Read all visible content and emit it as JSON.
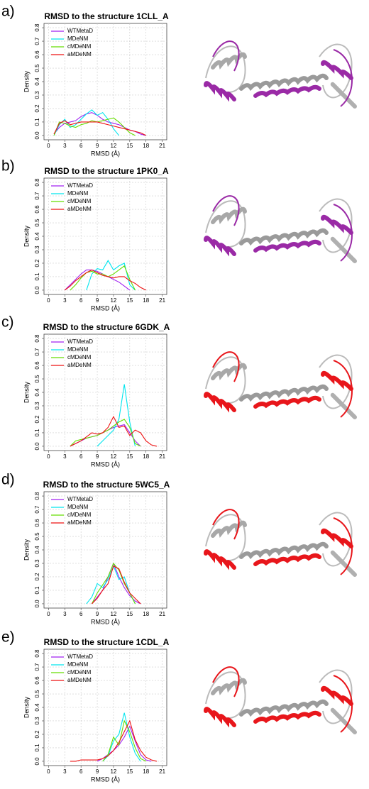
{
  "chart_data": [
    {
      "type": "line",
      "panel_label": "a)",
      "title": "RMSD to the structure 1CLL_A",
      "x_label": "RMSD (Å)",
      "y_label": "Density",
      "x": [
        0,
        1,
        2,
        3,
        4,
        5,
        6,
        7,
        8,
        9,
        10,
        11,
        12,
        13,
        14,
        15,
        16,
        17,
        18,
        19,
        20,
        21
      ],
      "series": [
        {
          "name": "WTMetaD",
          "color": "#a020f0",
          "values": [
            null,
            0.01,
            0.06,
            0.09,
            0.1,
            0.11,
            0.14,
            0.16,
            0.17,
            0.15,
            0.12,
            0.1,
            0.09,
            0.08,
            0.06,
            0.04,
            0.03,
            0.01,
            0.0,
            null,
            null,
            null
          ]
        },
        {
          "name": "MDeNM",
          "color": "#00e5ee",
          "values": [
            null,
            0.0,
            0.08,
            0.12,
            0.06,
            0.08,
            0.12,
            0.16,
            0.19,
            0.15,
            0.17,
            0.12,
            0.05,
            0.0,
            null,
            null,
            null,
            null,
            null,
            null,
            null,
            null
          ]
        },
        {
          "name": "cMDeNM",
          "color": "#66dd00",
          "values": [
            null,
            0.0,
            0.1,
            0.09,
            0.07,
            0.06,
            0.08,
            0.09,
            0.11,
            0.1,
            0.11,
            0.12,
            0.13,
            0.1,
            0.06,
            0.02,
            0.0,
            null,
            null,
            null,
            null,
            null
          ]
        },
        {
          "name": "aMDeNM",
          "color": "#ee1111",
          "values": [
            null,
            0.01,
            0.09,
            0.11,
            0.08,
            0.09,
            0.1,
            0.1,
            0.1,
            0.1,
            0.09,
            0.08,
            0.07,
            0.06,
            0.05,
            0.04,
            0.03,
            0.02,
            0.0,
            null,
            null,
            null
          ]
        }
      ],
      "xlim": [
        -0.84,
        21.84
      ],
      "ylim": [
        -0.032,
        0.832
      ],
      "xticks": [
        0,
        3,
        6,
        9,
        12,
        15,
        18,
        21
      ],
      "yticks": [
        {
          "value": 0,
          "label": "0.0"
        },
        0.1,
        0.2,
        0.3,
        0.4,
        0.5,
        0.6,
        0.7,
        0.8
      ],
      "grid": true,
      "legend": "top-left"
    },
    {
      "type": "line",
      "panel_label": "b)",
      "title": "RMSD to the structure 1PK0_A",
      "x_label": "RMSD (Å)",
      "y_label": "Density",
      "x": [
        0,
        1,
        2,
        3,
        4,
        5,
        6,
        7,
        8,
        9,
        10,
        11,
        12,
        13,
        14,
        15,
        16,
        17,
        18,
        19,
        20,
        21
      ],
      "series": [
        {
          "name": "WTMetaD",
          "color": "#a020f0",
          "values": [
            null,
            null,
            null,
            0.0,
            0.04,
            0.08,
            0.12,
            0.15,
            0.15,
            0.14,
            0.12,
            0.1,
            0.08,
            0.06,
            0.03,
            0.0,
            null,
            null,
            null,
            null,
            null,
            null
          ]
        },
        {
          "name": "MDeNM",
          "color": "#00e5ee",
          "values": [
            null,
            null,
            null,
            null,
            null,
            null,
            null,
            0.0,
            0.12,
            0.16,
            0.15,
            0.22,
            0.15,
            0.18,
            0.2,
            0.04,
            0.0,
            null,
            null,
            null,
            null,
            null
          ]
        },
        {
          "name": "cMDeNM",
          "color": "#66dd00",
          "values": [
            null,
            null,
            null,
            null,
            0.0,
            0.04,
            0.09,
            0.13,
            0.14,
            0.12,
            0.12,
            0.1,
            0.12,
            0.15,
            0.18,
            0.08,
            0.0,
            null,
            null,
            null,
            null,
            null
          ]
        },
        {
          "name": "aMDeNM",
          "color": "#ee1111",
          "values": [
            null,
            null,
            null,
            0.0,
            0.03,
            0.07,
            0.1,
            0.13,
            0.15,
            0.13,
            0.11,
            0.1,
            0.09,
            0.1,
            0.1,
            0.07,
            0.05,
            0.02,
            0.0,
            null,
            null,
            null
          ]
        }
      ],
      "xlim": [
        -0.84,
        21.84
      ],
      "ylim": [
        -0.032,
        0.832
      ],
      "xticks": [
        0,
        3,
        6,
        9,
        12,
        15,
        18,
        21
      ],
      "yticks": [
        {
          "value": 0,
          "label": "0.0"
        },
        0.1,
        0.2,
        0.3,
        0.4,
        0.5,
        0.6,
        0.7,
        0.8
      ],
      "grid": true,
      "legend": "top-left"
    },
    {
      "type": "line",
      "panel_label": "c)",
      "title": "RMSD to the structure 6GDK_A",
      "x_label": "RMSD (Å)",
      "y_label": "Density",
      "x": [
        0,
        1,
        2,
        3,
        4,
        5,
        6,
        7,
        8,
        9,
        10,
        11,
        12,
        13,
        14,
        15,
        16,
        17,
        18,
        19,
        20,
        21
      ],
      "series": [
        {
          "name": "WTMetaD",
          "color": "#a020f0",
          "values": [
            null,
            null,
            null,
            null,
            0.0,
            0.02,
            0.04,
            0.06,
            0.07,
            0.08,
            0.1,
            0.12,
            0.14,
            0.15,
            0.16,
            0.1,
            0.04,
            0.0,
            null,
            null,
            null,
            null
          ]
        },
        {
          "name": "MDeNM",
          "color": "#00e5ee",
          "values": [
            null,
            null,
            null,
            null,
            null,
            null,
            null,
            null,
            null,
            0.0,
            0.04,
            0.08,
            0.12,
            0.2,
            0.46,
            0.18,
            0.0,
            null,
            null,
            null,
            null,
            null
          ]
        },
        {
          "name": "cMDeNM",
          "color": "#66dd00",
          "values": [
            null,
            null,
            null,
            null,
            0.0,
            0.04,
            0.05,
            0.06,
            0.07,
            0.08,
            0.1,
            0.12,
            0.15,
            0.18,
            0.2,
            0.14,
            0.02,
            0.0,
            null,
            null,
            null,
            null
          ]
        },
        {
          "name": "aMDeNM",
          "color": "#ee1111",
          "values": [
            null,
            null,
            null,
            null,
            0.0,
            0.02,
            0.04,
            0.07,
            0.1,
            0.09,
            0.1,
            0.14,
            0.22,
            0.14,
            0.15,
            0.08,
            0.12,
            0.1,
            0.04,
            0.01,
            0.0,
            null
          ]
        }
      ],
      "xlim": [
        -0.84,
        21.84
      ],
      "ylim": [
        -0.032,
        0.832
      ],
      "xticks": [
        0,
        3,
        6,
        9,
        12,
        15,
        18,
        21
      ],
      "yticks": [
        {
          "value": 0,
          "label": "0.0"
        },
        0.1,
        0.2,
        0.3,
        0.4,
        0.5,
        0.6,
        0.7,
        0.8
      ],
      "grid": true,
      "legend": "top-left"
    },
    {
      "type": "line",
      "panel_label": "d)",
      "title": "RMSD to the structure 5WC5_A",
      "x_label": "RMSD (Å)",
      "y_label": "Density",
      "x": [
        0,
        1,
        2,
        3,
        4,
        5,
        6,
        7,
        8,
        9,
        10,
        11,
        12,
        13,
        14,
        15,
        16,
        17,
        18,
        19,
        20,
        21
      ],
      "series": [
        {
          "name": "WTMetaD",
          "color": "#a020f0",
          "values": [
            null,
            null,
            null,
            null,
            null,
            null,
            null,
            null,
            0.0,
            0.05,
            0.1,
            0.2,
            0.3,
            0.2,
            0.12,
            0.06,
            0.02,
            0.0,
            null,
            null,
            null,
            null
          ]
        },
        {
          "name": "MDeNM",
          "color": "#00e5ee",
          "values": [
            null,
            null,
            null,
            null,
            null,
            null,
            null,
            0.0,
            0.05,
            0.15,
            0.12,
            0.18,
            0.28,
            0.18,
            0.2,
            0.08,
            0.0,
            null,
            null,
            null,
            null,
            null
          ]
        },
        {
          "name": "cMDeNM",
          "color": "#66dd00",
          "values": [
            null,
            null,
            null,
            null,
            null,
            null,
            null,
            null,
            0.0,
            0.08,
            0.14,
            0.2,
            0.3,
            0.25,
            0.15,
            0.08,
            0.0,
            null,
            null,
            null,
            null,
            null
          ]
        },
        {
          "name": "aMDeNM",
          "color": "#ee1111",
          "values": [
            null,
            null,
            null,
            null,
            null,
            null,
            null,
            null,
            0.0,
            0.04,
            0.1,
            0.15,
            0.28,
            0.26,
            0.16,
            0.08,
            0.04,
            0.0,
            null,
            null,
            null,
            null
          ]
        }
      ],
      "xlim": [
        -0.84,
        21.84
      ],
      "ylim": [
        -0.032,
        0.832
      ],
      "xticks": [
        0,
        3,
        6,
        9,
        12,
        15,
        18,
        21
      ],
      "yticks": [
        {
          "value": 0,
          "label": "0.0"
        },
        0.1,
        0.2,
        0.3,
        0.4,
        0.5,
        0.6,
        0.7,
        0.8
      ],
      "grid": true,
      "legend": "top-left"
    },
    {
      "type": "line",
      "panel_label": "e)",
      "title": "RMSD to the structure 1CDL_A",
      "x_label": "RMSD (Å)",
      "y_label": "Density",
      "x": [
        0,
        1,
        2,
        3,
        4,
        5,
        6,
        7,
        8,
        9,
        10,
        11,
        12,
        13,
        14,
        15,
        16,
        17,
        18,
        19,
        20,
        21
      ],
      "series": [
        {
          "name": "WTMetaD",
          "color": "#a020f0",
          "values": [
            null,
            null,
            null,
            null,
            null,
            null,
            null,
            null,
            null,
            0.0,
            0.02,
            0.05,
            0.08,
            0.12,
            0.18,
            0.26,
            0.15,
            0.05,
            0.01,
            0.0,
            null,
            null
          ]
        },
        {
          "name": "MDeNM",
          "color": "#00e5ee",
          "values": [
            null,
            null,
            null,
            null,
            null,
            null,
            null,
            null,
            null,
            null,
            0.0,
            0.04,
            0.15,
            0.2,
            0.36,
            0.18,
            0.06,
            0.0,
            null,
            null,
            null,
            null
          ]
        },
        {
          "name": "cMDeNM",
          "color": "#66dd00",
          "values": [
            null,
            null,
            null,
            null,
            null,
            null,
            null,
            null,
            null,
            null,
            0.0,
            0.05,
            0.18,
            0.12,
            0.3,
            0.22,
            0.1,
            0.02,
            0.0,
            null,
            null,
            null
          ]
        },
        {
          "name": "aMDeNM",
          "color": "#ee1111",
          "values": [
            null,
            null,
            null,
            null,
            0.0,
            0.0,
            0.01,
            0.01,
            0.01,
            0.01,
            0.02,
            0.04,
            0.08,
            0.14,
            0.22,
            0.3,
            0.16,
            0.08,
            0.03,
            0.01,
            0.0,
            null
          ]
        }
      ],
      "xlim": [
        -0.84,
        21.84
      ],
      "ylim": [
        -0.032,
        0.832
      ],
      "xticks": [
        0,
        3,
        6,
        9,
        12,
        15,
        18,
        21
      ],
      "yticks": [
        {
          "value": 0,
          "label": "0.0"
        },
        0.1,
        0.2,
        0.3,
        0.4,
        0.5,
        0.6,
        0.7,
        0.8
      ],
      "grid": true,
      "legend": "top-left"
    }
  ]
}
